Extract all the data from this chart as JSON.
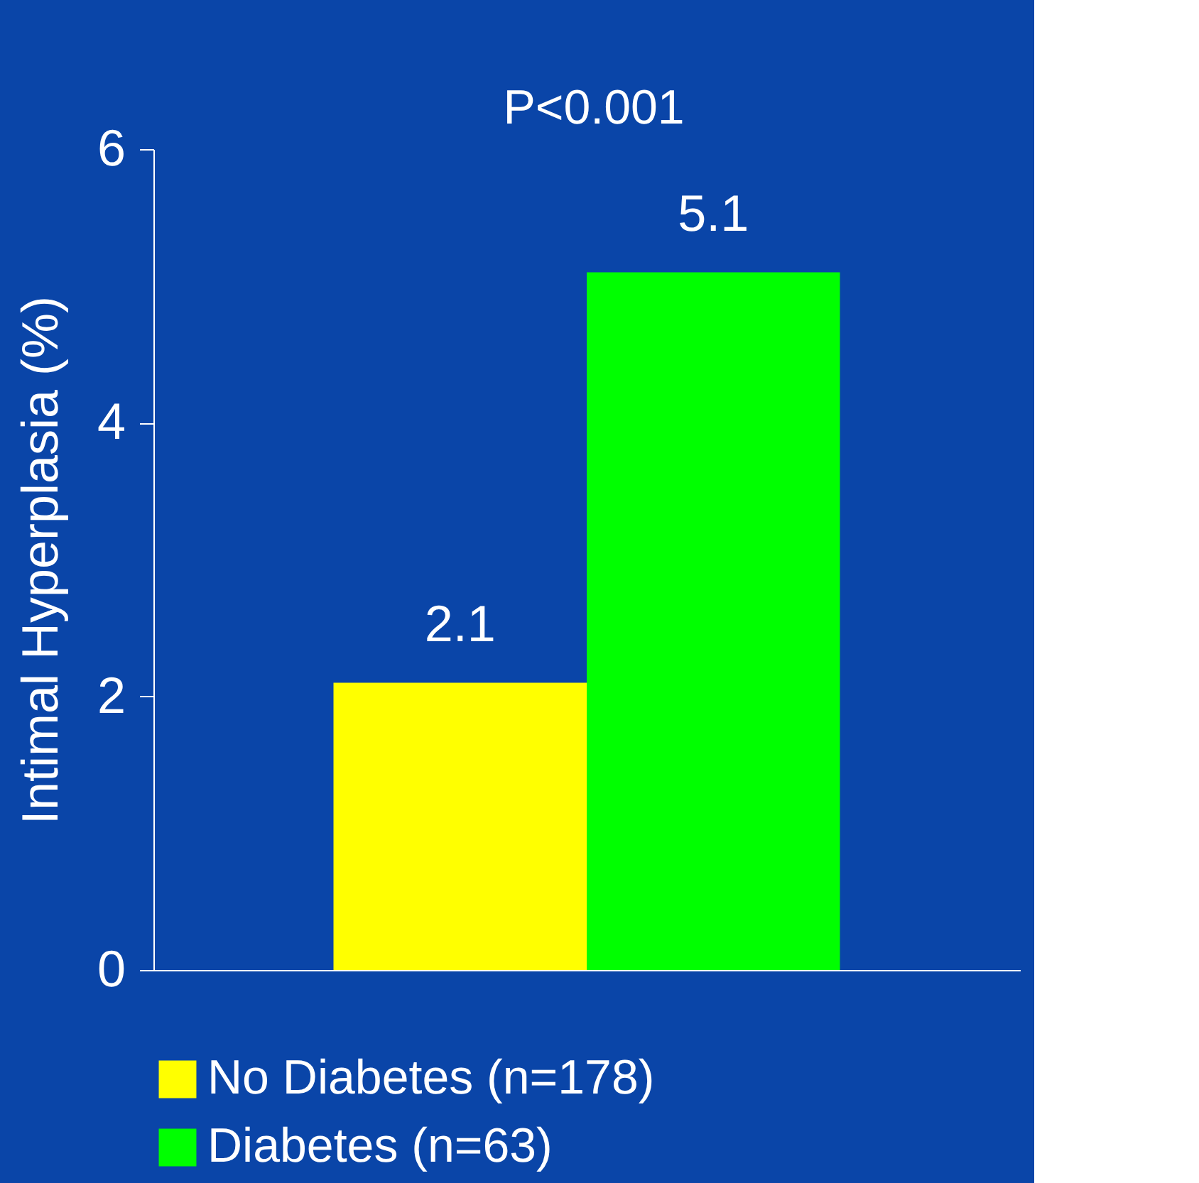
{
  "chart_data": {
    "type": "bar",
    "categories": [
      null
    ],
    "series": [
      {
        "name": "No Diabetes (n=178)",
        "color": "#ffff00",
        "values": [
          2.1
        ]
      },
      {
        "name": "Diabetes (n=63)",
        "color": "#00ff00",
        "values": [
          5.1
        ]
      }
    ],
    "ylabel": "Intimal Hyperplasia (%)",
    "ylim": [
      0,
      6
    ],
    "yticks": [
      0,
      2,
      4,
      6
    ],
    "grid": false,
    "legend": "bottom",
    "data_labels": true,
    "tick_labels": "y",
    "annotations": [
      "P<0.001"
    ]
  }
}
